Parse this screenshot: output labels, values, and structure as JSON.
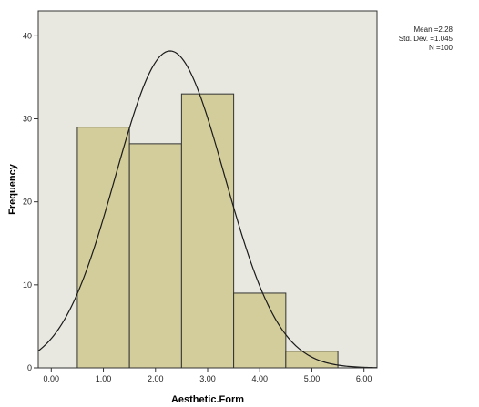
{
  "chart_data": {
    "type": "bar",
    "chart_kind": "histogram",
    "xlabel": "Aesthetic.Form",
    "ylabel": "Frequency",
    "x_ticks": [
      "0.00",
      "1.00",
      "2.00",
      "3.00",
      "4.00",
      "5.00",
      "6.00"
    ],
    "y_ticks": [
      "0",
      "10",
      "20",
      "30",
      "40"
    ],
    "xlim": [
      -0.25,
      6.25
    ],
    "ylim": [
      0,
      43
    ],
    "bins": [
      {
        "start": 0.5,
        "end": 1.5,
        "count": 29
      },
      {
        "start": 1.5,
        "end": 2.5,
        "count": 27
      },
      {
        "start": 2.5,
        "end": 3.5,
        "count": 33
      },
      {
        "start": 3.5,
        "end": 4.5,
        "count": 9
      },
      {
        "start": 4.5,
        "end": 5.5,
        "count": 2
      }
    ],
    "normal_curve": {
      "mean": 2.28,
      "std_dev": 1.045,
      "n": 100,
      "bin_width": 1
    },
    "stats": {
      "mean_line": "Mean =2.28",
      "std_line": "Std. Dev. =1.045",
      "n_line": "N =100"
    },
    "colors": {
      "plot_background": "#e8e8e0",
      "bar_fill": "#d3cc9b",
      "bar_stroke": "#333333",
      "curve": "#1a1a1a"
    },
    "grid": false,
    "legend": "none"
  }
}
